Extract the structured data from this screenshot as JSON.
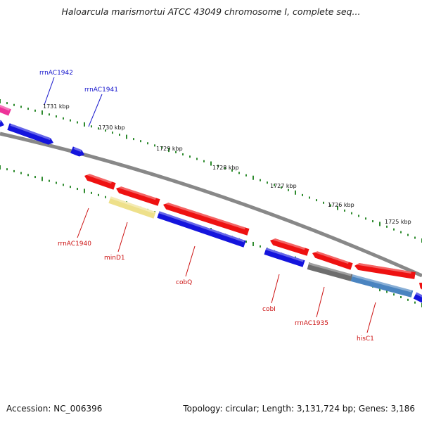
{
  "title": "Haloarcula marismortui ATCC 43049 chromosome I, complete seq...",
  "footer": {
    "accession": "Accession: NC_006396",
    "summary": "Topology: circular; Length: 3,131,724 bp; Genes: 3,186"
  },
  "colors": {
    "backbone": "#888888",
    "tick": "#2e8b2e",
    "forward_gene": "#ee1111",
    "reverse_gene": "#1414dd",
    "label_top": "#1414cc",
    "label_bottom": "#cc1111",
    "pink_gene": "#ee3399",
    "yellow_gene": "#eee08a",
    "gray_gene": "#6e6e6e",
    "steel_gene": "#4a84c0"
  },
  "kbp_labels": [
    "1731 kbp",
    "1730 kbp",
    "1729 kbp",
    "1728 kbp",
    "1727 kbp",
    "1726 kbp",
    "1725 kbp"
  ],
  "genes": {
    "top": [
      "rrnAC1942",
      "rrnAC1941"
    ],
    "bottom": [
      "rrnAC1940",
      "minD1",
      "cobQ",
      "cobI",
      "rrnAC1935",
      "hisC1"
    ]
  }
}
